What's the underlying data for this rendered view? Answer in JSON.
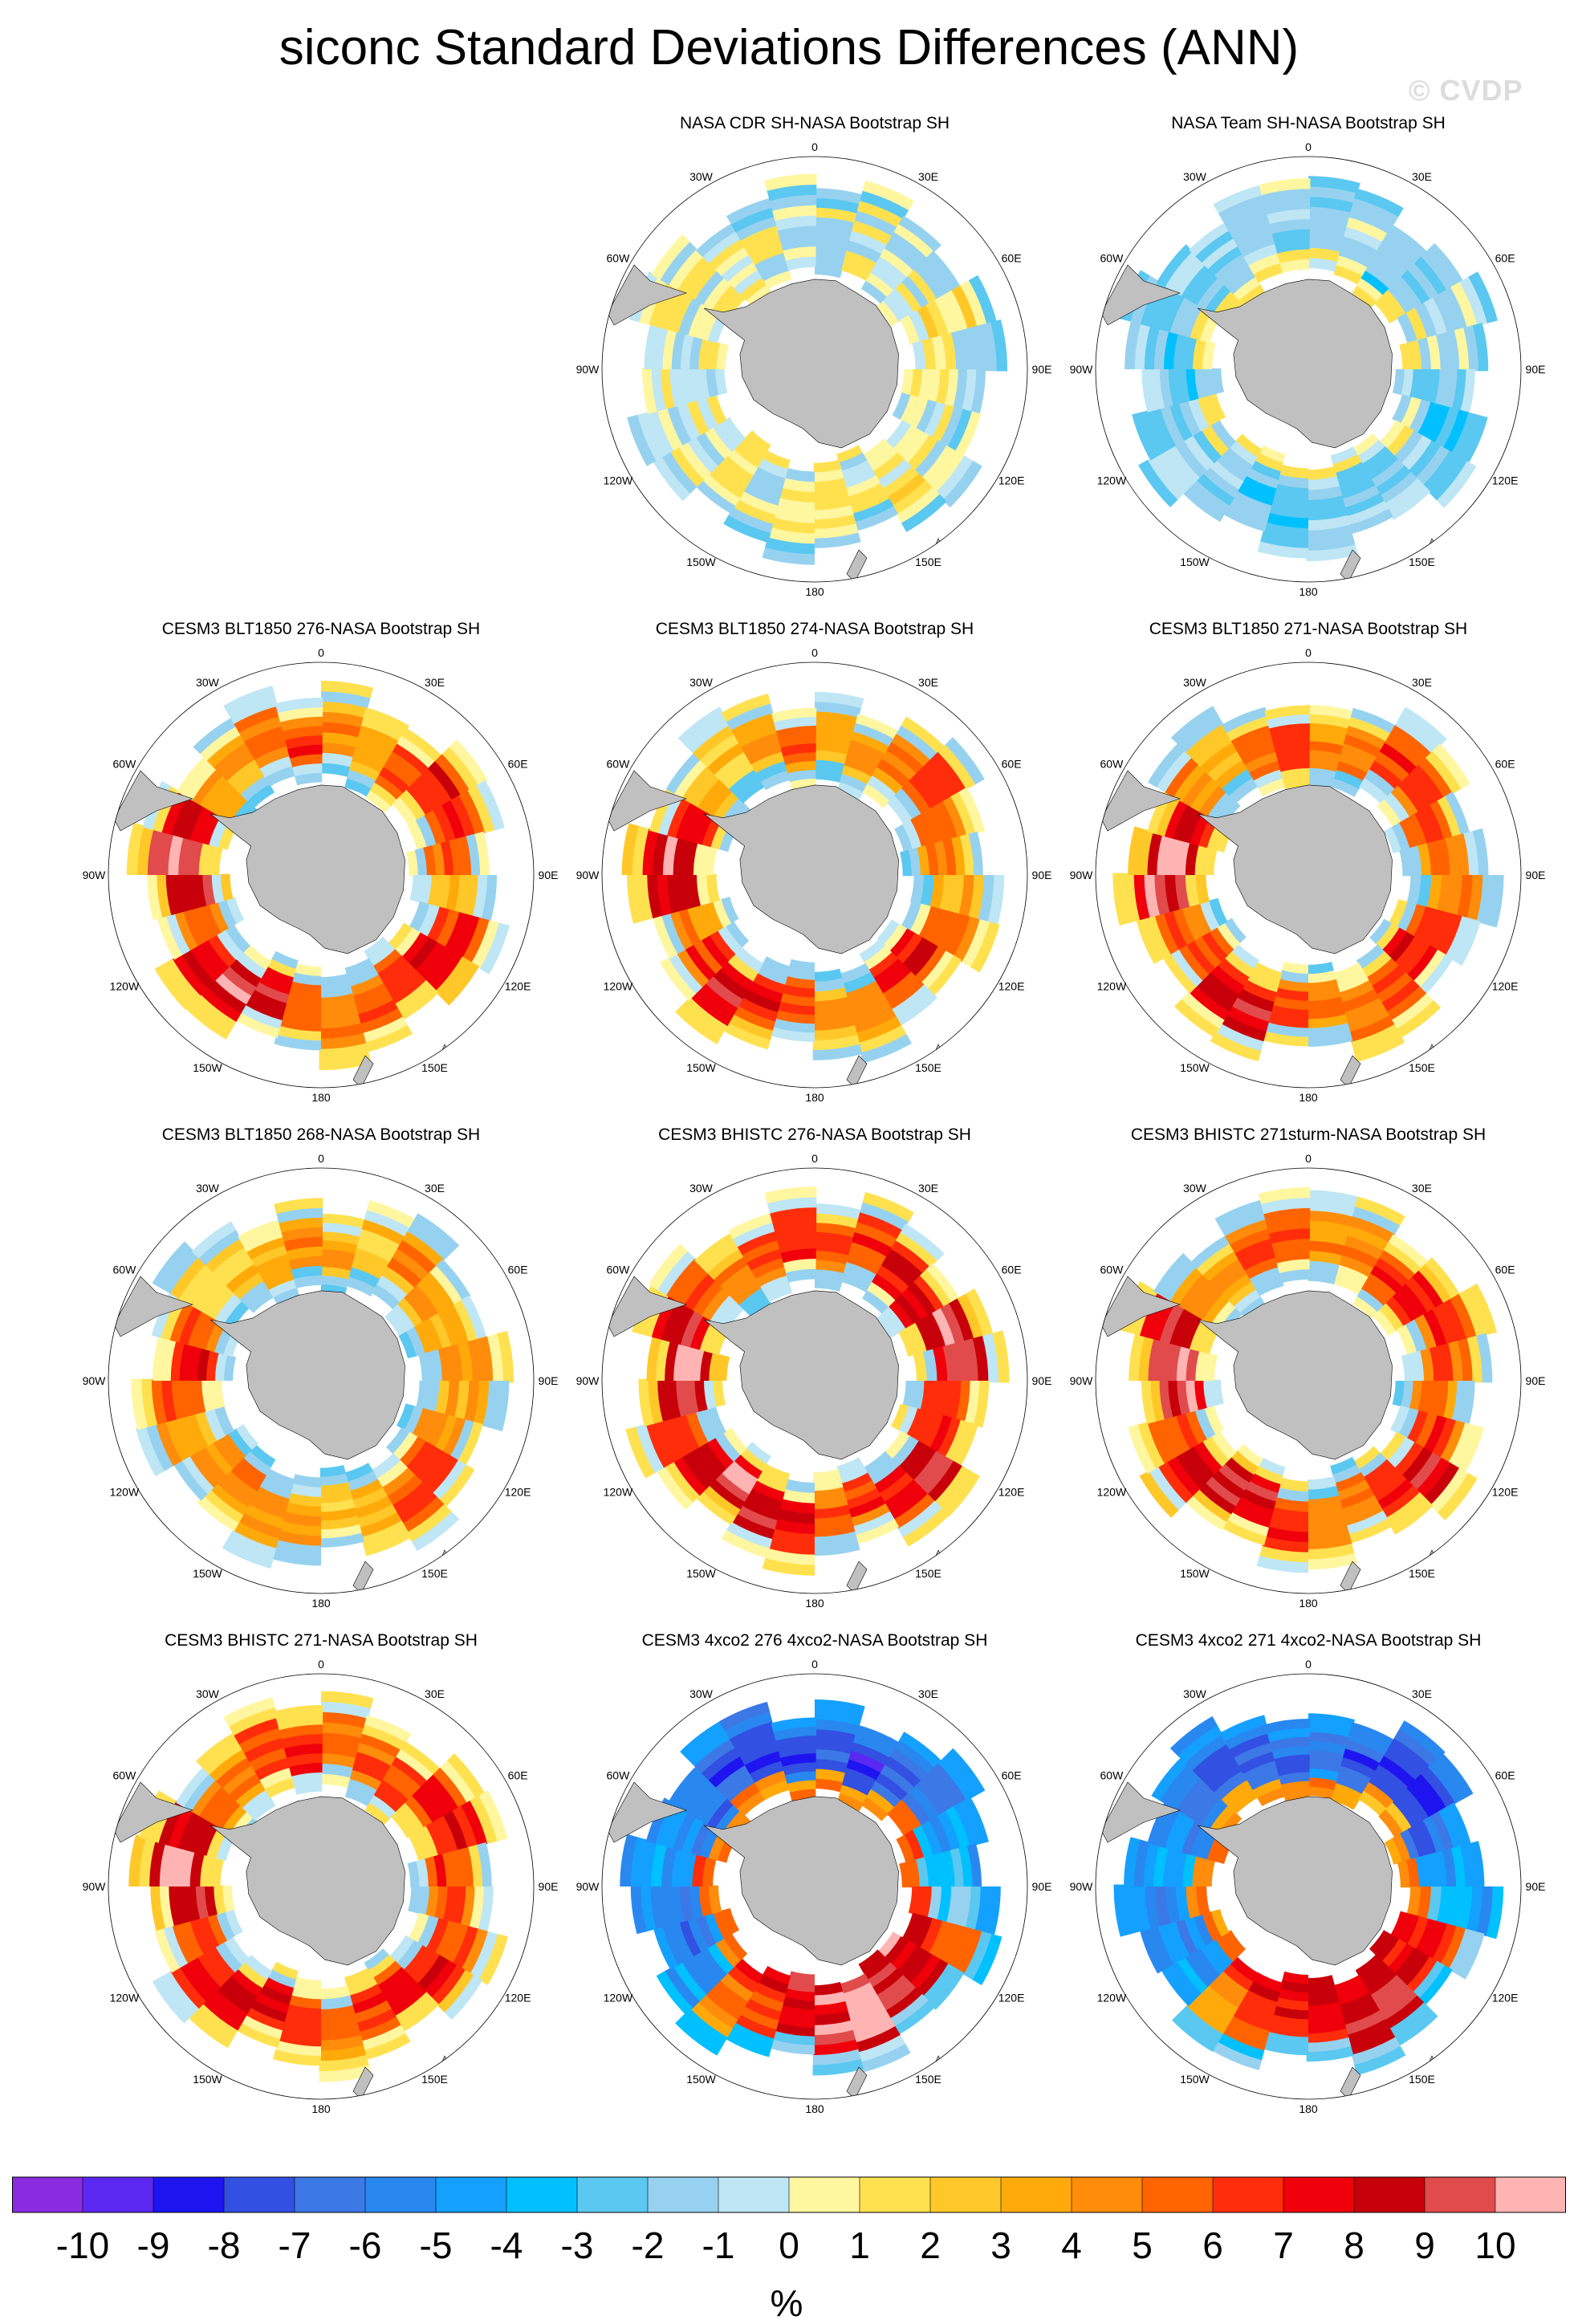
{
  "title": "siconc Standard Deviations Differences (ANN)",
  "watermark": "© CVDP",
  "longitude_labels": {
    "lon0": "0",
    "lon30e": "30E",
    "lon60e": "60E",
    "lon90e": "90E",
    "lon120e": "120E",
    "lon150e": "150E",
    "lon180": "180",
    "lon150w": "150W",
    "lon120w": "120W",
    "lon90w": "90W",
    "lon60w": "60W",
    "lon30w": "30W"
  },
  "panels": [
    {
      "id": "p01",
      "row": 0,
      "col": 1,
      "title": "NASA CDR SH-NASA Bootstrap SH",
      "ring": [
        0,
        0,
        0,
        0,
        1,
        0,
        0,
        0,
        0,
        1,
        0,
        0,
        0,
        0,
        1,
        0,
        0,
        0,
        0,
        0,
        0,
        0,
        0,
        0
      ],
      "outer": -1,
      "inner": 0
    },
    {
      "id": "p02",
      "row": 0,
      "col": 2,
      "title": "NASA Team SH-NASA Bootstrap SH",
      "ring": [
        -1,
        -1,
        -2,
        -1,
        -1,
        -1,
        -1,
        -2,
        -1,
        -1,
        -1,
        -1,
        -2,
        -2,
        -1,
        -1,
        -1,
        -2,
        -2,
        -1,
        -1,
        -1,
        -1,
        -1
      ],
      "outer": -1,
      "inner": 1
    },
    {
      "id": "p03",
      "row": 1,
      "col": 0,
      "title": "CESM3 BLT1850 276-NASA Bootstrap SH",
      "ring": [
        4,
        3,
        6,
        7,
        6,
        5,
        3,
        6,
        8,
        7,
        5,
        4,
        6,
        8,
        9,
        7,
        5,
        9,
        10,
        8,
        4,
        3,
        5,
        6
      ],
      "outer": -1,
      "inner": -3
    },
    {
      "id": "p04",
      "row": 1,
      "col": 1,
      "title": "CESM3 BLT1850 274-NASA Bootstrap SH",
      "ring": [
        3,
        4,
        5,
        6,
        5,
        4,
        3,
        5,
        7,
        6,
        4,
        3,
        5,
        7,
        8,
        6,
        4,
        8,
        9,
        7,
        3,
        2,
        4,
        5
      ],
      "outer": -1,
      "inner": -3
    },
    {
      "id": "p05",
      "row": 1,
      "col": 2,
      "title": "CESM3 BLT1850 271-NASA Bootstrap SH",
      "ring": [
        4,
        4,
        6,
        6,
        5,
        4,
        4,
        6,
        7,
        6,
        5,
        4,
        6,
        8,
        8,
        6,
        5,
        9,
        10,
        8,
        4,
        3,
        5,
        6
      ],
      "outer": -1,
      "inner": -3
    },
    {
      "id": "p06",
      "row": 2,
      "col": 0,
      "title": "CESM3 BLT1850 268-NASA Bootstrap SH",
      "ring": [
        3,
        2,
        4,
        3,
        3,
        4,
        3,
        4,
        6,
        5,
        3,
        2,
        3,
        4,
        5,
        4,
        3,
        6,
        7,
        5,
        2,
        2,
        3,
        4
      ],
      "outer": -1,
      "inner": -3
    },
    {
      "id": "p07",
      "row": 2,
      "col": 1,
      "title": "CESM3 BHISTC 276-NASA Bootstrap SH",
      "ring": [
        5,
        6,
        7,
        8,
        9,
        8,
        6,
        7,
        8,
        7,
        6,
        5,
        7,
        8,
        9,
        8,
        6,
        9,
        10,
        8,
        5,
        4,
        6,
        7
      ],
      "outer": -1,
      "inner": -3
    },
    {
      "id": "p08",
      "row": 2,
      "col": 2,
      "title": "CESM3 BHISTC 271sturm-NASA Bootstrap SH",
      "ring": [
        4,
        4,
        6,
        7,
        6,
        5,
        4,
        6,
        8,
        7,
        5,
        4,
        6,
        8,
        9,
        7,
        5,
        9,
        10,
        8,
        4,
        3,
        5,
        6
      ],
      "outer": -1,
      "inner": -3
    },
    {
      "id": "p09",
      "row": 3,
      "col": 0,
      "title": "CESM3 BHISTC 271-NASA Bootstrap SH",
      "ring": [
        5,
        5,
        6,
        7,
        7,
        6,
        5,
        6,
        7,
        7,
        6,
        5,
        6,
        8,
        8,
        7,
        6,
        9,
        10,
        8,
        5,
        4,
        6,
        7
      ],
      "outer": -1,
      "inner": -3
    },
    {
      "id": "p10",
      "row": 3,
      "col": 1,
      "title": "CESM3 4xco2 276 4xco2-NASA Bootstrap SH",
      "ring": [
        -7,
        -8,
        -7,
        -6,
        -4,
        -3,
        -2,
        6,
        8,
        9,
        10,
        9,
        8,
        6,
        4,
        -4,
        -6,
        -5,
        -4,
        -5,
        -6,
        -7,
        -8,
        -7
      ],
      "outer": -4,
      "inner": 9
    },
    {
      "id": "p11",
      "row": 3,
      "col": 2,
      "title": "CESM3 4xco2 271 4xco2-NASA Bootstrap SH",
      "ring": [
        -6,
        -7,
        -8,
        -8,
        -6,
        -4,
        -3,
        7,
        8,
        9,
        9,
        8,
        7,
        6,
        4,
        -4,
        -5,
        -5,
        -4,
        -5,
        -6,
        -7,
        -7,
        -6
      ],
      "outer": -4,
      "inner": 8
    }
  ],
  "colorbar": {
    "unit": "%",
    "labels": [
      "-10",
      "-9",
      "-8",
      "-7",
      "-6",
      "-5",
      "-4",
      "-3",
      "-2",
      "-1",
      "0",
      "1",
      "2",
      "3",
      "4",
      "5",
      "6",
      "7",
      "8",
      "9",
      "10"
    ],
    "colors": [
      "#8a2be2",
      "#5a28f0",
      "#1e14f0",
      "#3250e1",
      "#3c78e6",
      "#2888f0",
      "#14a0ff",
      "#00c0ff",
      "#5ac8f0",
      "#96d2ef",
      "#bee6f5",
      "#fff6a0",
      "#ffe150",
      "#ffc828",
      "#ffaa0a",
      "#ff8c0a",
      "#ff6400",
      "#ff2d0a",
      "#f0000a",
      "#c8000a",
      "#e14b4b",
      "#ffb4b4"
    ]
  },
  "land_color": "#c0c0c0"
}
